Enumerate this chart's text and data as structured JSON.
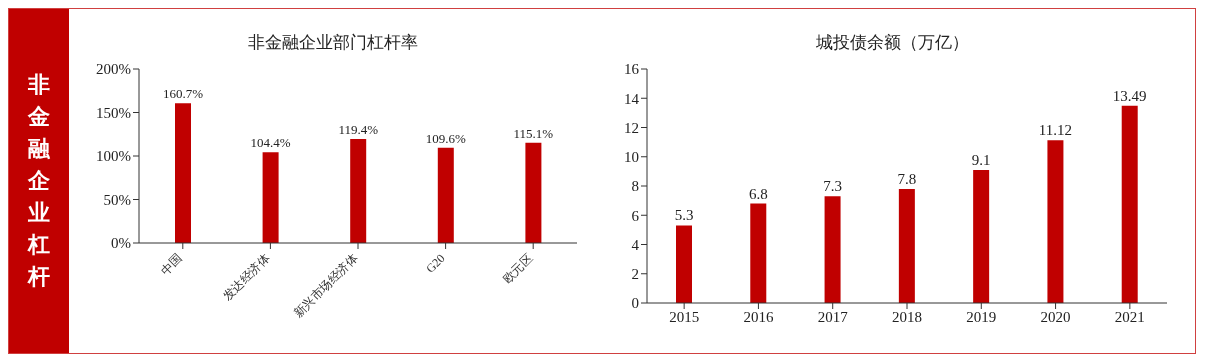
{
  "chart_data": [
    {
      "type": "other",
      "title": "非金融企业杠杆"
    },
    {
      "type": "bar",
      "title": "非金融企业部门杠杆率",
      "categories": [
        "中国",
        "发达经济体",
        "新兴市场经济体",
        "G20",
        "欧元区"
      ],
      "values": [
        160.7,
        104.4,
        119.4,
        109.6,
        115.1
      ],
      "value_labels": [
        "160.7%",
        "104.4%",
        "119.4%",
        "109.6%",
        "115.1%"
      ],
      "color": "#c00000",
      "ylim": [
        0,
        200
      ],
      "yticks": [
        {
          "value": 0,
          "label": "0%"
        },
        {
          "value": 50,
          "label": "50%"
        },
        {
          "value": 100,
          "label": "100%"
        },
        {
          "value": 150,
          "label": "150%"
        },
        {
          "value": 200,
          "label": "200%"
        }
      ],
      "grid": false
    },
    {
      "type": "bar",
      "title": "城投债余额（万亿）",
      "categories": [
        "2015",
        "2016",
        "2017",
        "2018",
        "2019",
        "2020",
        "2021"
      ],
      "values": [
        5.3,
        6.8,
        7.3,
        7.8,
        9.1,
        11.12,
        13.49
      ],
      "data_labels": true,
      "color": "#c00000",
      "ylim": [
        0,
        16
      ],
      "yticks": [
        0,
        2,
        4,
        6,
        8,
        10,
        12,
        14,
        16
      ],
      "grid": false
    }
  ]
}
